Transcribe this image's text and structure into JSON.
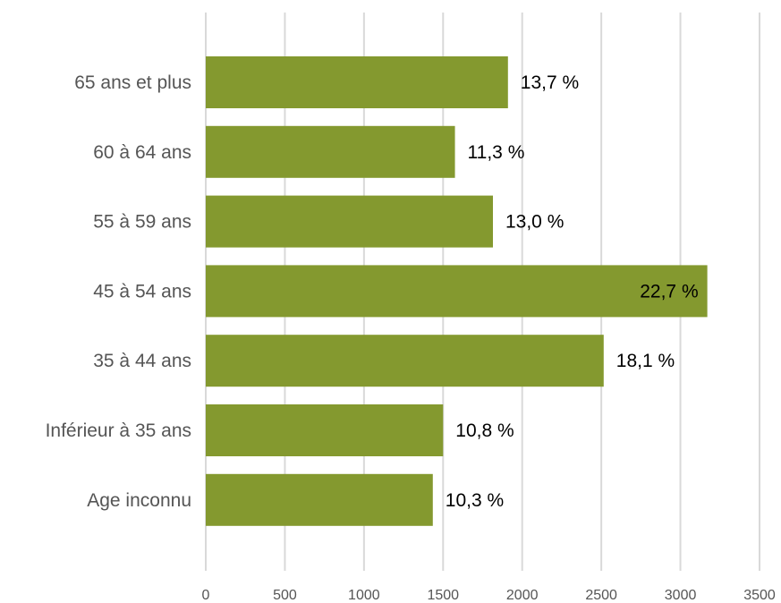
{
  "colors": {
    "bar": "#84992f",
    "grid": "#d9d9d9"
  },
  "chart_data": {
    "type": "bar",
    "orientation": "horizontal",
    "categories": [
      "65 ans et plus",
      "60 à 64 ans",
      "55 à 59 ans",
      "45 à 54 ans",
      "35 à 44 ans",
      "Inférieur à 35 ans",
      "Age inconnu"
    ],
    "values": [
      1910,
      1575,
      1815,
      3170,
      2515,
      1500,
      1435
    ],
    "data_labels": [
      "13,7 %",
      "11,3 %",
      "13,0 %",
      "22,7 %",
      "18,1 %",
      "10,8 %",
      "10,3 %"
    ],
    "xlim": [
      0,
      3500
    ],
    "xticks": [
      0,
      500,
      1000,
      1500,
      2000,
      2500,
      3000,
      3500
    ],
    "xtick_labels": [
      "0",
      "500",
      "1000",
      "1500",
      "2000",
      "2500",
      "3000",
      "3500"
    ],
    "grid": "vertical",
    "legend": "none"
  }
}
